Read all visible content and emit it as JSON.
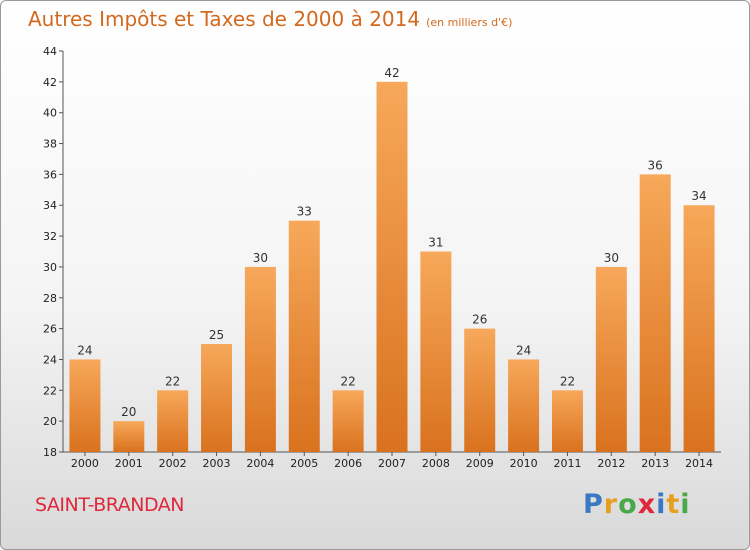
{
  "header": {
    "title": "Autres Impôts et Taxes de 2000 à 2014",
    "unit": "(en milliers d'€)"
  },
  "footer": {
    "commune": "SAINT-BRANDAN",
    "logo": "Proxiti"
  },
  "colors": {
    "bar_light": "#f7a85a",
    "bar_dark": "#d9721e",
    "title": "#d2691e",
    "commune": "#e0283c"
  },
  "chart_data": {
    "type": "bar",
    "title": "Autres Impôts et Taxes de 2000 à 2014",
    "categories": [
      "2000",
      "2001",
      "2002",
      "2003",
      "2004",
      "2005",
      "2006",
      "2007",
      "2008",
      "2009",
      "2010",
      "2011",
      "2012",
      "2013",
      "2014"
    ],
    "values": [
      24,
      20,
      22,
      25,
      30,
      33,
      22,
      42,
      31,
      26,
      24,
      22,
      30,
      36,
      34
    ],
    "ylim": [
      18,
      44
    ],
    "yticks": [
      18,
      20,
      22,
      24,
      26,
      28,
      30,
      32,
      34,
      36,
      38,
      40,
      42,
      44
    ],
    "grid": false,
    "legend": "none"
  }
}
